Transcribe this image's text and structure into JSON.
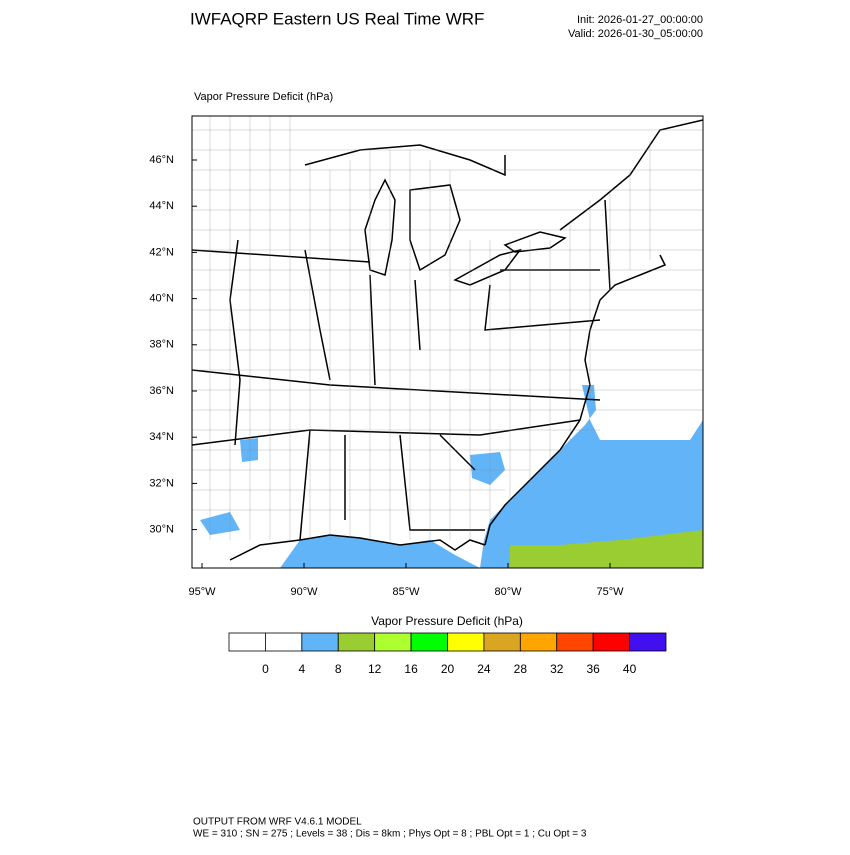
{
  "header": {
    "title": "IWFAQRP Eastern US Real Time WRF",
    "init": "Init: 2026-01-27_00:00:00",
    "valid": "Valid: 2026-01-30_05:00:00"
  },
  "map": {
    "label": "Vapor Pressure Deficit   (hPa)",
    "lat_labels": [
      "46°N",
      "44°N",
      "42°N",
      "40°N",
      "38°N",
      "36°N",
      "34°N",
      "32°N",
      "30°N"
    ],
    "lon_labels": [
      "95°W",
      "90°W",
      "85°W",
      "80°W",
      "75°W"
    ]
  },
  "colorbar": {
    "title": "Vapor Pressure Deficit  (hPa)",
    "ticks": [
      0,
      4,
      8,
      12,
      16,
      20,
      24,
      28,
      32,
      36,
      40
    ],
    "colors": [
      "#ffffff",
      "#ffffff",
      "#62b4f8",
      "#9acd32",
      "#adff2f",
      "#00ff00",
      "#ffff00",
      "#daa520",
      "#ffa500",
      "#ff4500",
      "#ff0000",
      "#4010f0"
    ]
  },
  "footer": {
    "line1": "OUTPUT FROM WRF V4.6.1 MODEL",
    "line2": "WE = 310 ; SN = 275 ; Levels = 38 ; Dis = 8km ; Phys Opt = 8 ; PBL Opt = 1 ; Cu Opt = 3"
  }
}
